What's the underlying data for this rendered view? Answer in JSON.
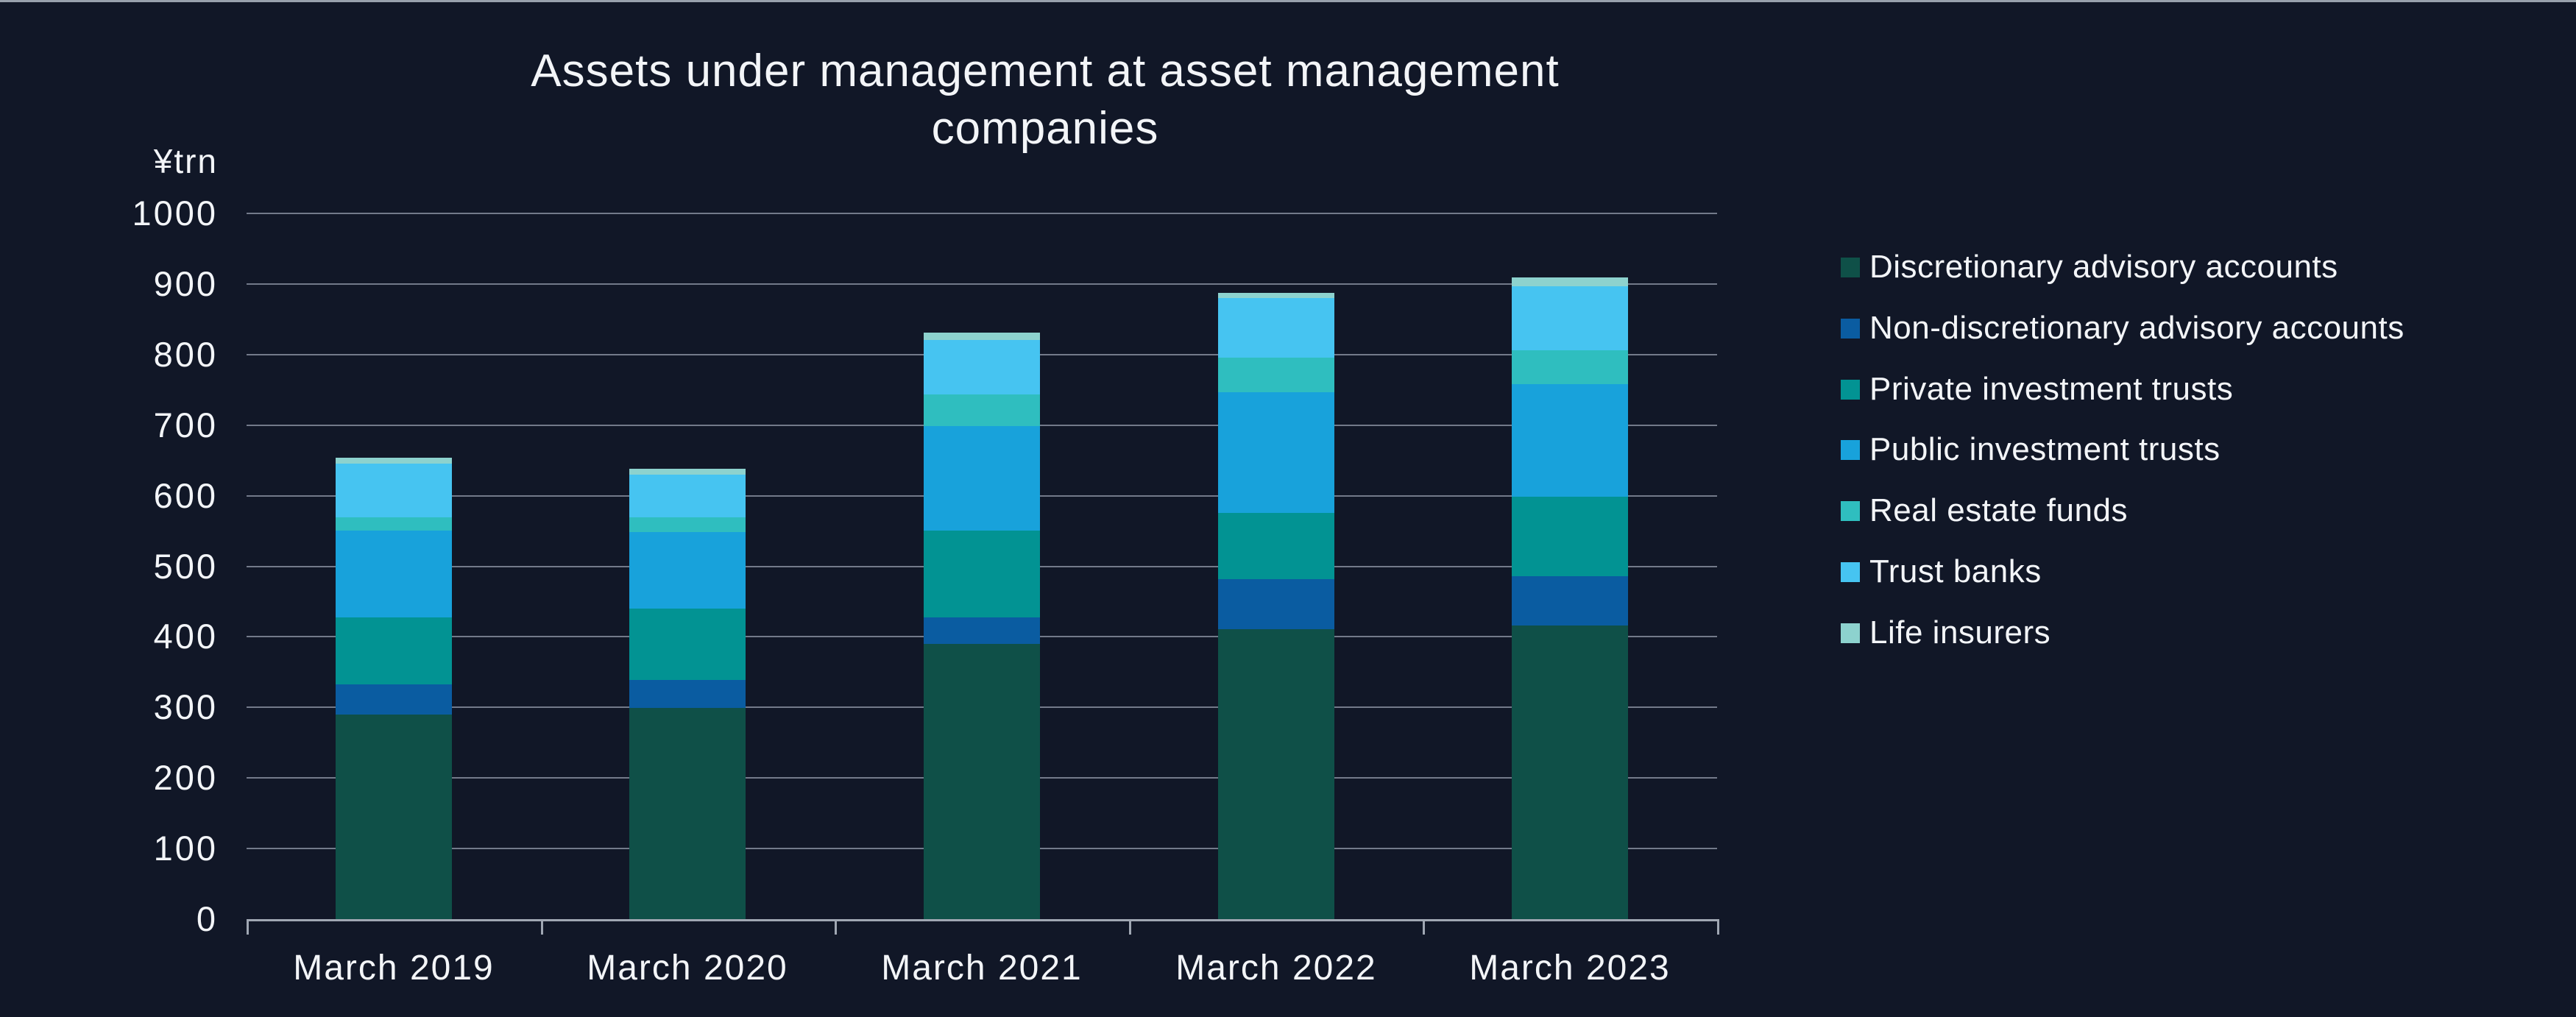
{
  "page": {
    "background": "#111727",
    "top_edge_color": "#98A1AC",
    "text_color": "#F3F5F8",
    "gridline_color": "#737A8A",
    "axis_color": "#A0A7B3"
  },
  "title": {
    "line1": "Assets under management at asset management",
    "line2": "companies",
    "full": "Assets under management at asset management companies"
  },
  "chart_data": {
    "type": "bar",
    "stacked": true,
    "title": "Assets under management at asset management companies",
    "xlabel": "",
    "ylabel": "¥trn",
    "ylim": [
      0,
      1000
    ],
    "yticks": [
      0,
      100,
      200,
      300,
      400,
      500,
      600,
      700,
      800,
      900,
      1000
    ],
    "grid": true,
    "legend_position": "right",
    "categories": [
      "March 2019",
      "March 2020",
      "March 2021",
      "March 2022",
      "March 2023"
    ],
    "series": [
      {
        "name": "Discretionary advisory accounts",
        "color": "#0F5048",
        "values": [
          290,
          299,
          390,
          411,
          416
        ]
      },
      {
        "name": "Non-discretionary advisory accounts",
        "color": "#0A5CA1",
        "values": [
          43,
          40,
          38,
          71,
          70
        ]
      },
      {
        "name": "Private investment trusts",
        "color": "#029393",
        "values": [
          95,
          101,
          123,
          94,
          113
        ]
      },
      {
        "name": "Public investment trusts",
        "color": "#18A2DB",
        "values": [
          123,
          108,
          148,
          171,
          159
        ]
      },
      {
        "name": "Real estate funds",
        "color": "#2FBEBF",
        "values": [
          18,
          21,
          45,
          49,
          48
        ]
      },
      {
        "name": "Trust banks",
        "color": "#46C4F1",
        "values": [
          76,
          61,
          77,
          84,
          91
        ]
      },
      {
        "name": "Life insurers",
        "color": "#8DD2CE",
        "values": [
          9,
          8,
          10,
          7,
          12
        ]
      }
    ]
  }
}
